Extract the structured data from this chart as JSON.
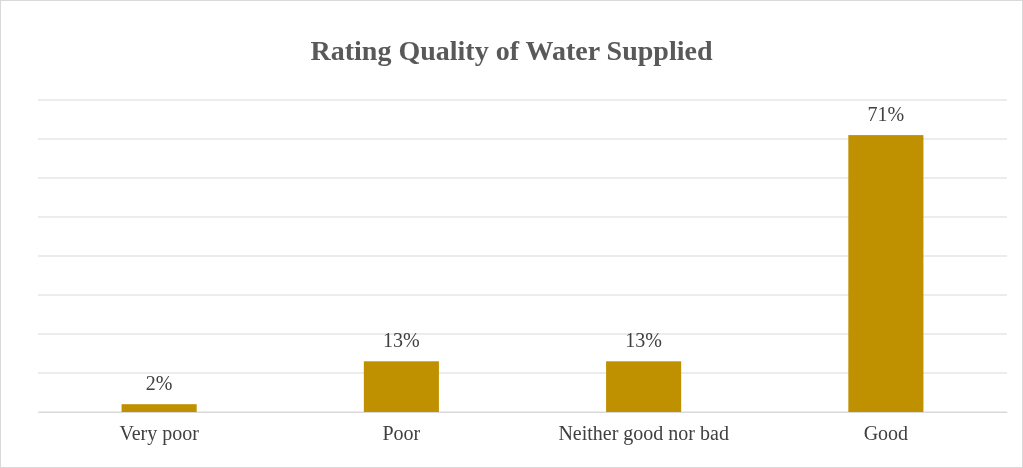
{
  "chart_data": {
    "type": "bar",
    "title": "Rating Quality of Water Supplied",
    "categories": [
      "Very poor",
      "Poor",
      "Neither good nor bad",
      "Good"
    ],
    "values": [
      2,
      13,
      13,
      71
    ],
    "value_labels": [
      "2%",
      "13%",
      "13%",
      "71%"
    ],
    "color": "#bf9000",
    "ylim": [
      0,
      80
    ],
    "yticks": [
      {
        "value": 0,
        "label": null
      },
      {
        "value": 10,
        "label": null
      },
      {
        "value": 20,
        "label": null
      },
      {
        "value": 30,
        "label": null
      },
      {
        "value": 40,
        "label": null
      },
      {
        "value": 50,
        "label": null
      },
      {
        "value": 60,
        "label": null
      },
      {
        "value": 70,
        "label": null
      },
      {
        "value": 80,
        "label": null
      }
    ],
    "tick_labels": "x",
    "grid": "y"
  }
}
